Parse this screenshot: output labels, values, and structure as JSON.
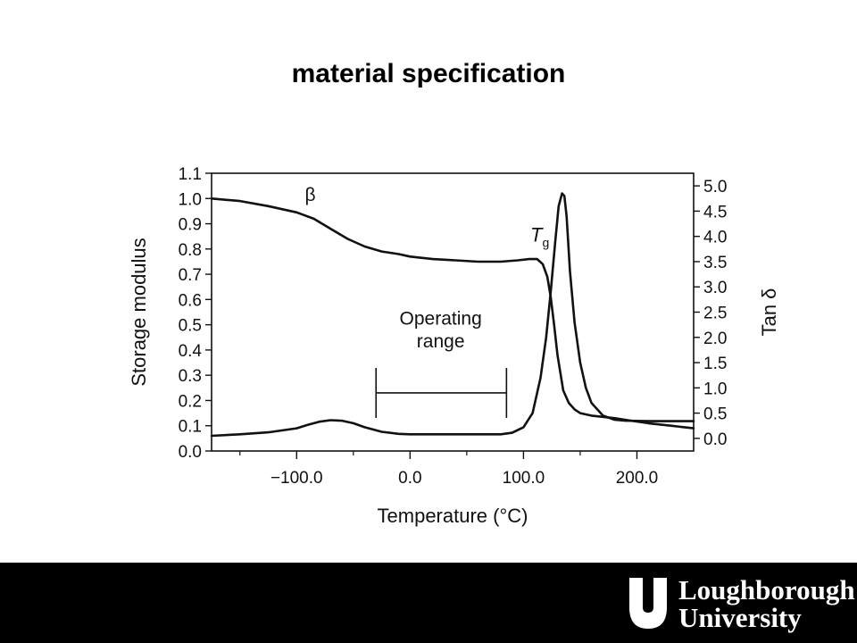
{
  "slide": {
    "title": "material specification"
  },
  "chart_data": {
    "type": "line",
    "xlabel": "Temperature (°C)",
    "ylabel": "Storage modulus",
    "y2label": "Tan δ",
    "xlim": [
      -175,
      250
    ],
    "ylim": [
      0.0,
      1.1
    ],
    "y2lim": [
      -0.25,
      5.25
    ],
    "x_ticks": [
      -100.0,
      0.0,
      100.0,
      200.0
    ],
    "x_tick_labels": [
      "−100.0",
      "0.0",
      "100.0",
      "200.0"
    ],
    "x_minor_ticks": [
      -150,
      -50,
      50,
      150
    ],
    "y_ticks": [
      0.0,
      0.1,
      0.2,
      0.3,
      0.4,
      0.5,
      0.6,
      0.7,
      0.8,
      0.9,
      1.0,
      1.1
    ],
    "y_tick_labels": [
      "0.0",
      "0.1",
      "0.2",
      "0.3",
      "0.4",
      "0.5",
      "0.6",
      "0.7",
      "0.8",
      "0.9",
      "1.0",
      "1.1"
    ],
    "y2_ticks": [
      0.0,
      0.5,
      1.0,
      1.5,
      2.0,
      2.5,
      3.0,
      3.5,
      4.0,
      4.5,
      5.0
    ],
    "y2_tick_labels": [
      "0.0",
      "0.5",
      "1.0",
      "1.5",
      "2.0",
      "2.5",
      "3.0",
      "3.5",
      "4.0",
      "4.5",
      "5.0"
    ],
    "grid": false,
    "series": [
      {
        "axis": "left",
        "x": [
          -175,
          -150,
          -125,
          -100,
          -85,
          -70,
          -55,
          -40,
          -25,
          -10,
          0,
          20,
          40,
          60,
          80,
          95,
          105,
          112,
          117,
          121,
          124,
          127,
          130,
          135,
          140,
          145,
          150,
          160,
          170,
          180,
          195,
          210,
          230,
          250
        ],
        "y": [
          1.0,
          0.99,
          0.97,
          0.945,
          0.92,
          0.88,
          0.84,
          0.81,
          0.79,
          0.78,
          0.77,
          0.76,
          0.755,
          0.75,
          0.75,
          0.755,
          0.76,
          0.76,
          0.74,
          0.69,
          0.61,
          0.5,
          0.38,
          0.24,
          0.19,
          0.165,
          0.15,
          0.14,
          0.135,
          0.13,
          0.12,
          0.11,
          0.1,
          0.09
        ]
      },
      {
        "axis": "right",
        "x": [
          -175,
          -150,
          -125,
          -100,
          -90,
          -80,
          -70,
          -60,
          -50,
          -40,
          -25,
          -10,
          0,
          20,
          40,
          60,
          80,
          90,
          100,
          108,
          115,
          120,
          124,
          128,
          131,
          134,
          136,
          138,
          141,
          145,
          150,
          155,
          160,
          170,
          180,
          190,
          210,
          230,
          250
        ],
        "y": [
          0.05,
          0.08,
          0.12,
          0.2,
          0.27,
          0.33,
          0.36,
          0.35,
          0.3,
          0.22,
          0.13,
          0.09,
          0.08,
          0.08,
          0.08,
          0.08,
          0.08,
          0.11,
          0.22,
          0.5,
          1.2,
          2.0,
          2.9,
          3.9,
          4.6,
          4.85,
          4.8,
          4.4,
          3.3,
          2.3,
          1.5,
          1.0,
          0.7,
          0.45,
          0.37,
          0.35,
          0.34,
          0.34,
          0.34
        ]
      }
    ],
    "annotations": [
      {
        "text": "β",
        "x": -88,
        "y": 0.99,
        "axis": "left"
      },
      {
        "text": "T",
        "subscript": "g",
        "x": 106,
        "y": 0.83,
        "axis": "left"
      },
      {
        "text": "Operating",
        "x": 27,
        "y": 0.5,
        "axis": "left"
      },
      {
        "text": "range",
        "x": 27,
        "y": 0.41,
        "axis": "left"
      }
    ],
    "range_bracket": {
      "label": "Operating range",
      "x_start": -30,
      "x_end": 85,
      "y": 0.23
    }
  },
  "footer": {
    "background": "#000000",
    "logo_line1": "Loughborough",
    "logo_line2": "University"
  }
}
